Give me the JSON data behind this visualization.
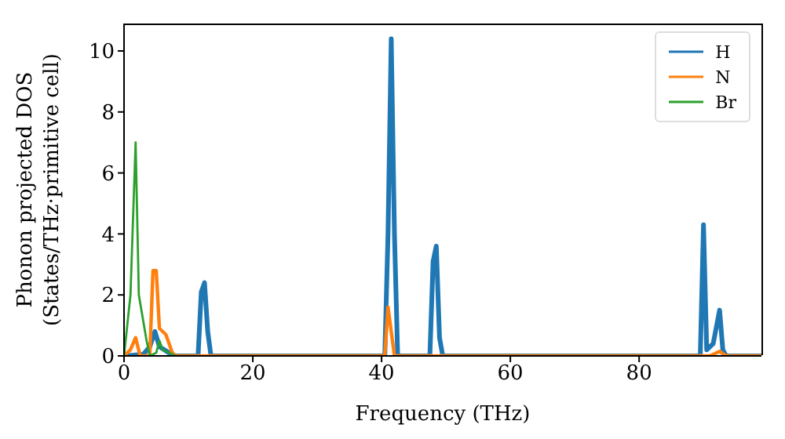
{
  "chart_data": {
    "type": "line",
    "xlabel": "Frequency (THz)",
    "ylabel": "Phonon projected DOS\n(States/THz·primitive cell)",
    "xlim": [
      0,
      99
    ],
    "ylim": [
      0,
      10.9
    ],
    "xticks": [
      0,
      20,
      40,
      60,
      80
    ],
    "yticks": [
      0,
      2,
      4,
      6,
      8,
      10
    ],
    "grid": false,
    "legend": "top right",
    "marker": "none",
    "line_style": "solid",
    "series": [
      {
        "name": "H",
        "color": "#1f77b4",
        "x": [
          0,
          3,
          4,
          4.8,
          5.5,
          7,
          8,
          11.5,
          12,
          12.5,
          13,
          13.5,
          40.5,
          41,
          41.5,
          42,
          42.5,
          47.5,
          48,
          48.5,
          49,
          49.5,
          89.5,
          90,
          90.5,
          91.5,
          92.5,
          93,
          93.5,
          99
        ],
        "values": [
          0,
          0.05,
          0.3,
          0.8,
          0.3,
          0.1,
          0,
          0,
          2.1,
          2.4,
          0.8,
          0,
          0,
          4,
          10.4,
          4,
          0,
          0,
          3.1,
          3.6,
          0.6,
          0,
          0,
          4.3,
          0.2,
          0.4,
          1.5,
          0.2,
          0,
          0
        ]
      },
      {
        "name": "N",
        "color": "#ff7f0e",
        "x": [
          0,
          1,
          1.8,
          2.5,
          4,
          4.5,
          5,
          5.5,
          6.5,
          7.5,
          8,
          40.5,
          41,
          42,
          91,
          92.5,
          93.5,
          99
        ],
        "values": [
          0,
          0.2,
          0.6,
          0,
          0,
          2.8,
          2.8,
          0.9,
          0.7,
          0.1,
          0,
          0,
          1.6,
          0,
          0,
          0.15,
          0,
          0
        ]
      },
      {
        "name": "Br",
        "color": "#2ca02c",
        "x": [
          0,
          1,
          1.8,
          2.3,
          3.5,
          4,
          5,
          5.5,
          6,
          7,
          8
        ],
        "values": [
          0,
          2,
          7,
          2,
          0.5,
          0,
          0.1,
          0.5,
          0.2,
          0.1,
          0
        ]
      }
    ]
  }
}
